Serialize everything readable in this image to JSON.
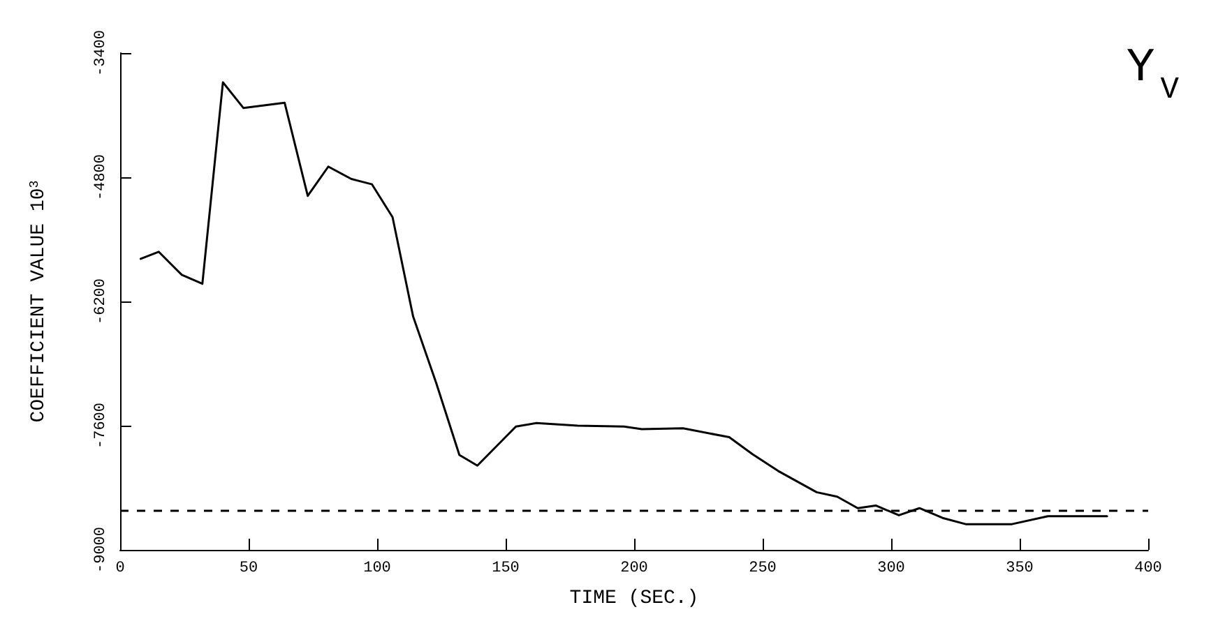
{
  "chart_data": {
    "type": "line",
    "title": "Y$_{V}$",
    "xlabel": "TIME (SEC.)",
    "ylabel": "COEFFICIENT VALUE 10$^{3}$",
    "xlim": [
      0,
      400
    ],
    "xticks": [
      0,
      50,
      100,
      150,
      200,
      250,
      300,
      350,
      400
    ],
    "ylim": [
      -9000,
      -3400
    ],
    "yticks": [
      -9000,
      -7600,
      -6200,
      -4800,
      -3400
    ],
    "grid": false,
    "marker": "none",
    "line_style": "solid",
    "series": [
      {
        "color": "#000000",
        "x": [
          8,
          15,
          24,
          32,
          40,
          48,
          64,
          73,
          81,
          90,
          98,
          106,
          114,
          123,
          132,
          139,
          154,
          162,
          178,
          196,
          203,
          219,
          237,
          246,
          256,
          271,
          279,
          287,
          294,
          303,
          311,
          320,
          329,
          347,
          361,
          384
        ],
        "values": [
          -5720,
          -5640,
          -5900,
          -6000,
          -3730,
          -4020,
          -3960,
          -5010,
          -4680,
          -4820,
          -4880,
          -5250,
          -6370,
          -7120,
          -7930,
          -8050,
          -7610,
          -7570,
          -7600,
          -7610,
          -7640,
          -7630,
          -7730,
          -7920,
          -8110,
          -8350,
          -8400,
          -8530,
          -8500,
          -8610,
          -8530,
          -8640,
          -8710,
          -8710,
          -8620,
          -8620
        ]
      }
    ],
    "ref_lines": [
      {
        "axis": "y",
        "value": -8550,
        "color": "#000000",
        "line_style": "dashed"
      }
    ]
  }
}
